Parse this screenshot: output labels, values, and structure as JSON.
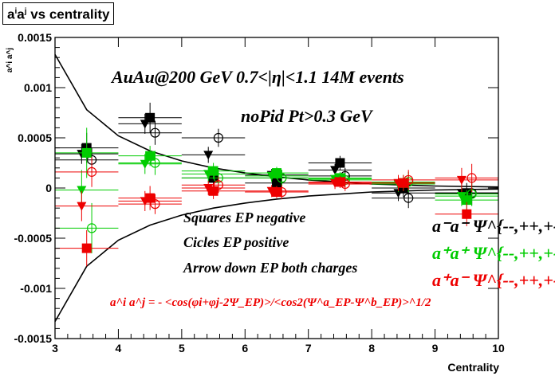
{
  "chart_data": {
    "type": "scatter",
    "title": "a^i a^j vs centrality",
    "title_base": "a",
    "title_sup_i": "i",
    "title_sup_j": "j",
    "title_suffix": " vs centrality",
    "xlabel": "Centrality",
    "ylabel": "a^i a^j",
    "xlim": [
      3,
      10
    ],
    "ylim": [
      -0.0015,
      0.0015
    ],
    "xticks": [
      {
        "v": 3,
        "label": "3"
      },
      {
        "v": 4,
        "label": "4"
      },
      {
        "v": 5,
        "label": "5"
      },
      {
        "v": 6,
        "label": "6"
      },
      {
        "v": 7,
        "label": "7"
      },
      {
        "v": 8,
        "label": "8"
      },
      {
        "v": 9,
        "label": "9"
      },
      {
        "v": 10,
        "label": "10"
      }
    ],
    "yticks": [
      {
        "v": -0.0015,
        "label": "-0.0015"
      },
      {
        "v": -0.001,
        "label": "-0.001"
      },
      {
        "v": -0.0005,
        "label": "-0.0005"
      },
      {
        "v": 0,
        "label": "0"
      },
      {
        "v": 0.0005,
        "label": "0.0005"
      },
      {
        "v": 0.001,
        "label": "0.001"
      },
      {
        "v": 0.0015,
        "label": "0.0015"
      }
    ],
    "grid": false,
    "annotations": {
      "line1": "AuAu@200 GeV 0.7<|η|<1.1 14M events",
      "line2": "noPid Pt>0.3 GeV",
      "line3": "Squares EP negative",
      "line4": "Cicles EP positive",
      "line5": "Arrow down EP both charges",
      "formula": "a^i a^j = - <cos(φi+φj-2Ψ_EP)>/<cos2(Ψ^a_EP-Ψ^b_EP)>^1/2"
    },
    "legend": [
      {
        "label": "a⁻a⁻ Ψ^{--,++,+-}",
        "color": "#000000"
      },
      {
        "label": "a⁺a⁺ Ψ^{--,++,+-}",
        "color": "#00cc00"
      },
      {
        "label": "a⁺a⁻ Ψ^{--,++,+-}",
        "color": "#ee0000"
      }
    ],
    "series": [
      {
        "name": "a⁻a⁻",
        "color": "#000000",
        "points": [
          {
            "x": 3.5,
            "marker": "square",
            "y": 0.0004,
            "err": 0.00015
          },
          {
            "x": 3.5,
            "marker": "circle",
            "y": 0.00028,
            "err": 0.00012
          },
          {
            "x": 3.5,
            "marker": "triangle",
            "y": 0.00034,
            "err": 0.0001
          },
          {
            "x": 4.5,
            "marker": "square",
            "y": 0.0007,
            "err": 0.00015
          },
          {
            "x": 4.5,
            "marker": "circle",
            "y": 0.00055,
            "err": 0.00012
          },
          {
            "x": 4.5,
            "marker": "triangle",
            "y": 0.00064,
            "err": 0.0001
          },
          {
            "x": 5.5,
            "marker": "square",
            "y": 0.0001,
            "err": 8e-05
          },
          {
            "x": 5.5,
            "marker": "circle",
            "y": 0.0005,
            "err": 9e-05
          },
          {
            "x": 5.5,
            "marker": "triangle",
            "y": 0.00033,
            "err": 8e-05
          },
          {
            "x": 6.5,
            "marker": "square",
            "y": 5e-05,
            "err": 6e-05
          },
          {
            "x": 6.5,
            "marker": "circle",
            "y": 0.0001,
            "err": 8e-05
          },
          {
            "x": 6.5,
            "marker": "triangle",
            "y": 0.00013,
            "err": 6e-05
          },
          {
            "x": 7.5,
            "marker": "square",
            "y": 0.00025,
            "err": 7e-05
          },
          {
            "x": 7.5,
            "marker": "circle",
            "y": 0.00012,
            "err": 8e-05
          },
          {
            "x": 7.5,
            "marker": "triangle",
            "y": 0.00018,
            "err": 6e-05
          },
          {
            "x": 8.5,
            "marker": "square",
            "y": 0.0,
            "err": 9e-05
          },
          {
            "x": 8.5,
            "marker": "circle",
            "y": -0.0001,
            "err": 0.0001
          },
          {
            "x": 8.5,
            "marker": "triangle",
            "y": -5e-05,
            "err": 8e-05
          },
          {
            "x": 9.5,
            "marker": "square",
            "y": -5e-05,
            "err": 0.0001
          },
          {
            "x": 9.5,
            "marker": "circle",
            "y": -5e-05,
            "err": 0.00012
          },
          {
            "x": 9.5,
            "marker": "triangle",
            "y": -5e-05,
            "err": 0.0001
          }
        ]
      },
      {
        "name": "a⁺a⁺",
        "color": "#00cc00",
        "points": [
          {
            "x": 3.5,
            "marker": "square",
            "y": 0.00035,
            "err": 0.00025
          },
          {
            "x": 3.5,
            "marker": "circle",
            "y": -0.0004,
            "err": 0.00025
          },
          {
            "x": 3.5,
            "marker": "triangle",
            "y": -2e-05,
            "err": 0.0002
          },
          {
            "x": 4.5,
            "marker": "square",
            "y": 0.00032,
            "err": 0.0001
          },
          {
            "x": 4.5,
            "marker": "circle",
            "y": 0.00025,
            "err": 0.00012
          },
          {
            "x": 4.5,
            "marker": "triangle",
            "y": 0.00024,
            "err": 0.0001
          },
          {
            "x": 5.5,
            "marker": "square",
            "y": 0.00017,
            "err": 8e-05
          },
          {
            "x": 5.5,
            "marker": "circle",
            "y": 0.0001,
            "err": 9e-05
          },
          {
            "x": 5.5,
            "marker": "triangle",
            "y": 0.00014,
            "err": 8e-05
          },
          {
            "x": 6.5,
            "marker": "square",
            "y": 0.00015,
            "err": 6e-05
          },
          {
            "x": 6.5,
            "marker": "circle",
            "y": 0.0001,
            "err": 8e-05
          },
          {
            "x": 6.5,
            "marker": "triangle",
            "y": 0.00012,
            "err": 6e-05
          },
          {
            "x": 7.5,
            "marker": "square",
            "y": 0.0001,
            "err": 6e-05
          },
          {
            "x": 7.5,
            "marker": "circle",
            "y": 8e-05,
            "err": 7e-05
          },
          {
            "x": 7.5,
            "marker": "triangle",
            "y": 9e-05,
            "err": 6e-05
          },
          {
            "x": 8.5,
            "marker": "square",
            "y": 5e-05,
            "err": 8e-05
          },
          {
            "x": 8.5,
            "marker": "circle",
            "y": 6e-05,
            "err": 0.0001
          },
          {
            "x": 8.5,
            "marker": "triangle",
            "y": 4e-05,
            "err": 8e-05
          },
          {
            "x": 9.5,
            "marker": "square",
            "y": -0.00012,
            "err": 0.0001
          },
          {
            "x": 9.5,
            "marker": "circle",
            "y": -6e-05,
            "err": 0.00012
          },
          {
            "x": 9.5,
            "marker": "triangle",
            "y": -8e-05,
            "err": 0.0001
          }
        ]
      },
      {
        "name": "a⁺a⁻",
        "color": "#ee0000",
        "points": [
          {
            "x": 3.5,
            "marker": "square",
            "y": -0.0006,
            "err": 0.00018
          },
          {
            "x": 3.5,
            "marker": "circle",
            "y": 0.00016,
            "err": 0.00015
          },
          {
            "x": 3.5,
            "marker": "triangle",
            "y": -0.00018,
            "err": 0.00015
          },
          {
            "x": 4.5,
            "marker": "square",
            "y": -0.0001,
            "err": 0.00012
          },
          {
            "x": 4.5,
            "marker": "circle",
            "y": -0.00016,
            "err": 0.0001
          },
          {
            "x": 4.5,
            "marker": "triangle",
            "y": -0.00013,
            "err": 0.0001
          },
          {
            "x": 5.5,
            "marker": "square",
            "y": -3e-05,
            "err": 8e-05
          },
          {
            "x": 5.5,
            "marker": "circle",
            "y": 3e-05,
            "err": 8e-05
          },
          {
            "x": 5.5,
            "marker": "triangle",
            "y": 0.0,
            "err": 7e-05
          },
          {
            "x": 6.5,
            "marker": "square",
            "y": -4e-05,
            "err": 6e-05
          },
          {
            "x": 6.5,
            "marker": "circle",
            "y": -4e-05,
            "err": 7e-05
          },
          {
            "x": 6.5,
            "marker": "triangle",
            "y": -3e-05,
            "err": 6e-05
          },
          {
            "x": 7.5,
            "marker": "square",
            "y": 6e-05,
            "err": 6e-05
          },
          {
            "x": 7.5,
            "marker": "circle",
            "y": 4e-05,
            "err": 7e-05
          },
          {
            "x": 7.5,
            "marker": "triangle",
            "y": 5e-05,
            "err": 6e-05
          },
          {
            "x": 8.5,
            "marker": "square",
            "y": 5e-05,
            "err": 8e-05
          },
          {
            "x": 8.5,
            "marker": "circle",
            "y": 8e-05,
            "err": 0.0001
          },
          {
            "x": 8.5,
            "marker": "triangle",
            "y": 5e-05,
            "err": 8e-05
          },
          {
            "x": 9.5,
            "marker": "square",
            "y": -0.00026,
            "err": 0.00012
          },
          {
            "x": 9.5,
            "marker": "circle",
            "y": 0.0001,
            "err": 0.00014
          },
          {
            "x": 9.5,
            "marker": "triangle",
            "y": 8e-05,
            "err": 0.00012
          }
        ]
      }
    ],
    "curves": {
      "upper": [
        [
          3,
          0.00133
        ],
        [
          3.5,
          0.00078
        ],
        [
          4,
          0.00052
        ],
        [
          4.5,
          0.00037
        ],
        [
          5,
          0.00027
        ],
        [
          5.5,
          0.0002
        ],
        [
          6,
          0.00015
        ],
        [
          6.5,
          0.00011
        ],
        [
          7,
          8e-05
        ],
        [
          7.5,
          6e-05
        ],
        [
          8,
          4e-05
        ],
        [
          9,
          2e-05
        ],
        [
          10,
          1e-05
        ]
      ],
      "lower": [
        [
          3,
          -0.00133
        ],
        [
          3.5,
          -0.00078
        ],
        [
          4,
          -0.00052
        ],
        [
          4.5,
          -0.00037
        ],
        [
          5,
          -0.00027
        ],
        [
          5.5,
          -0.0002
        ],
        [
          6,
          -0.00015
        ],
        [
          6.5,
          -0.00011
        ],
        [
          7,
          -8e-05
        ],
        [
          7.5,
          -6e-05
        ],
        [
          8,
          -4e-05
        ],
        [
          9,
          -2e-05
        ],
        [
          10,
          -1e-05
        ]
      ]
    }
  }
}
